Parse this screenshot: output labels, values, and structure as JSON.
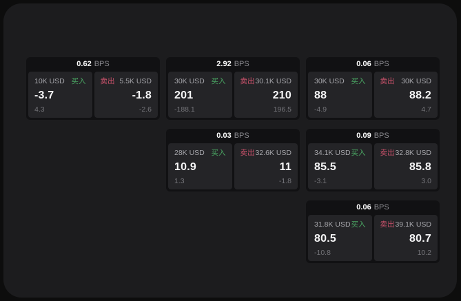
{
  "labels": {
    "bps_unit": "BPS",
    "buy": "买入",
    "sell": "卖出"
  },
  "colors": {
    "page_background": "#0d0d0d",
    "panel_background": "#1c1c1e",
    "card_background": "#111113",
    "subpanel_background": "#242427",
    "buy_accent": "#4aa663",
    "sell_accent": "#c8516a",
    "value_text": "#f6f6f7",
    "muted_text": "#a6a6ab",
    "faint_text": "#747479"
  },
  "cards": [
    {
      "col": 1,
      "row": 1,
      "bps": "0.62",
      "buy": {
        "amount": "10K USD",
        "value": "-3.7",
        "sub": "4.3"
      },
      "sell": {
        "amount": "5.5K USD",
        "value": "-1.8",
        "sub": "-2.6"
      }
    },
    {
      "col": 2,
      "row": 1,
      "bps": "2.92",
      "buy": {
        "amount": "30K USD",
        "value": "201",
        "sub": "-188.1"
      },
      "sell": {
        "amount": "30.1K USD",
        "value": "210",
        "sub": "196.5"
      }
    },
    {
      "col": 3,
      "row": 1,
      "bps": "0.06",
      "buy": {
        "amount": "30K USD",
        "value": "88",
        "sub": "-4.9"
      },
      "sell": {
        "amount": "30K USD",
        "value": "88.2",
        "sub": "4.7"
      }
    },
    {
      "col": 2,
      "row": 2,
      "bps": "0.03",
      "buy": {
        "amount": "28K USD",
        "value": "10.9",
        "sub": "1.3"
      },
      "sell": {
        "amount": "32.6K USD",
        "value": "11",
        "sub": "-1.8"
      }
    },
    {
      "col": 3,
      "row": 2,
      "bps": "0.09",
      "buy": {
        "amount": "34.1K USD",
        "value": "85.5",
        "sub": "-3.1"
      },
      "sell": {
        "amount": "32.8K USD",
        "value": "85.8",
        "sub": "3.0"
      }
    },
    {
      "col": 3,
      "row": 3,
      "bps": "0.06",
      "buy": {
        "amount": "31.8K USD",
        "value": "80.5",
        "sub": "-10.8"
      },
      "sell": {
        "amount": "39.1K USD",
        "value": "80.7",
        "sub": "10.2"
      }
    }
  ]
}
